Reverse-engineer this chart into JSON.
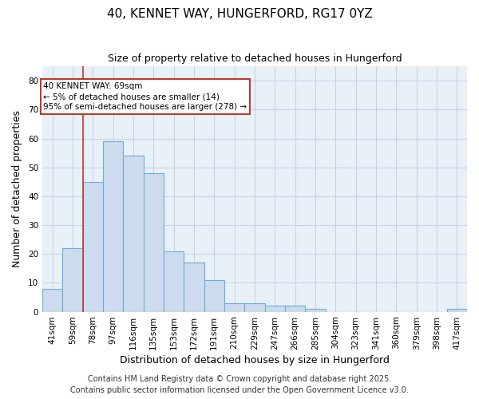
{
  "title_line1": "40, KENNET WAY, HUNGERFORD, RG17 0YZ",
  "title_line2": "Size of property relative to detached houses in Hungerford",
  "xlabel": "Distribution of detached houses by size in Hungerford",
  "ylabel": "Number of detached properties",
  "bin_labels": [
    "41sqm",
    "59sqm",
    "78sqm",
    "97sqm",
    "116sqm",
    "135sqm",
    "153sqm",
    "172sqm",
    "191sqm",
    "210sqm",
    "229sqm",
    "247sqm",
    "266sqm",
    "285sqm",
    "304sqm",
    "323sqm",
    "341sqm",
    "360sqm",
    "379sqm",
    "398sqm",
    "417sqm"
  ],
  "bar_heights": [
    8,
    22,
    45,
    59,
    54,
    48,
    21,
    17,
    11,
    3,
    3,
    2,
    2,
    1,
    0,
    0,
    0,
    0,
    0,
    0,
    1
  ],
  "bar_color": "#ccdcee",
  "bar_edge_color": "#6baed6",
  "ylim": [
    0,
    85
  ],
  "yticks": [
    0,
    10,
    20,
    30,
    40,
    50,
    60,
    70,
    80
  ],
  "grid_color": "#c8d4e3",
  "bg_color": "#ffffff",
  "plot_bg_color": "#e8f0f8",
  "annotation_text": "40 KENNET WAY: 69sqm\n← 5% of detached houses are smaller (14)\n95% of semi-detached houses are larger (278) →",
  "vline_x": 1.5,
  "vline_color": "#c0392b",
  "box_color": "#c0392b",
  "footer_line1": "Contains HM Land Registry data © Crown copyright and database right 2025.",
  "footer_line2": "Contains public sector information licensed under the Open Government Licence v3.0.",
  "footer_fontsize": 7,
  "title1_fontsize": 11,
  "title2_fontsize": 9,
  "axis_label_fontsize": 9,
  "tick_fontsize": 7.5,
  "annot_fontsize": 7.5
}
